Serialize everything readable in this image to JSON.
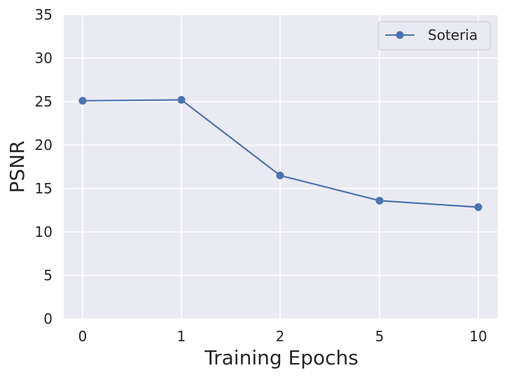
{
  "chart_data": {
    "type": "line",
    "title": "",
    "xlabel": "Training Epochs",
    "ylabel": "PSNR",
    "categories": [
      "0",
      "1",
      "2",
      "5",
      "10"
    ],
    "series": [
      {
        "name": "Soteria",
        "values": [
          25.1,
          25.2,
          16.5,
          13.6,
          12.85
        ]
      }
    ],
    "ylim": [
      0,
      35
    ],
    "yticks": [
      0,
      5,
      10,
      15,
      20,
      25,
      30,
      35
    ],
    "grid": true,
    "legend_position": "top-right"
  },
  "colors": {
    "plot_background": "#EAEAF2",
    "grid": "#FFFFFF",
    "series": [
      "#4C72B0"
    ]
  }
}
